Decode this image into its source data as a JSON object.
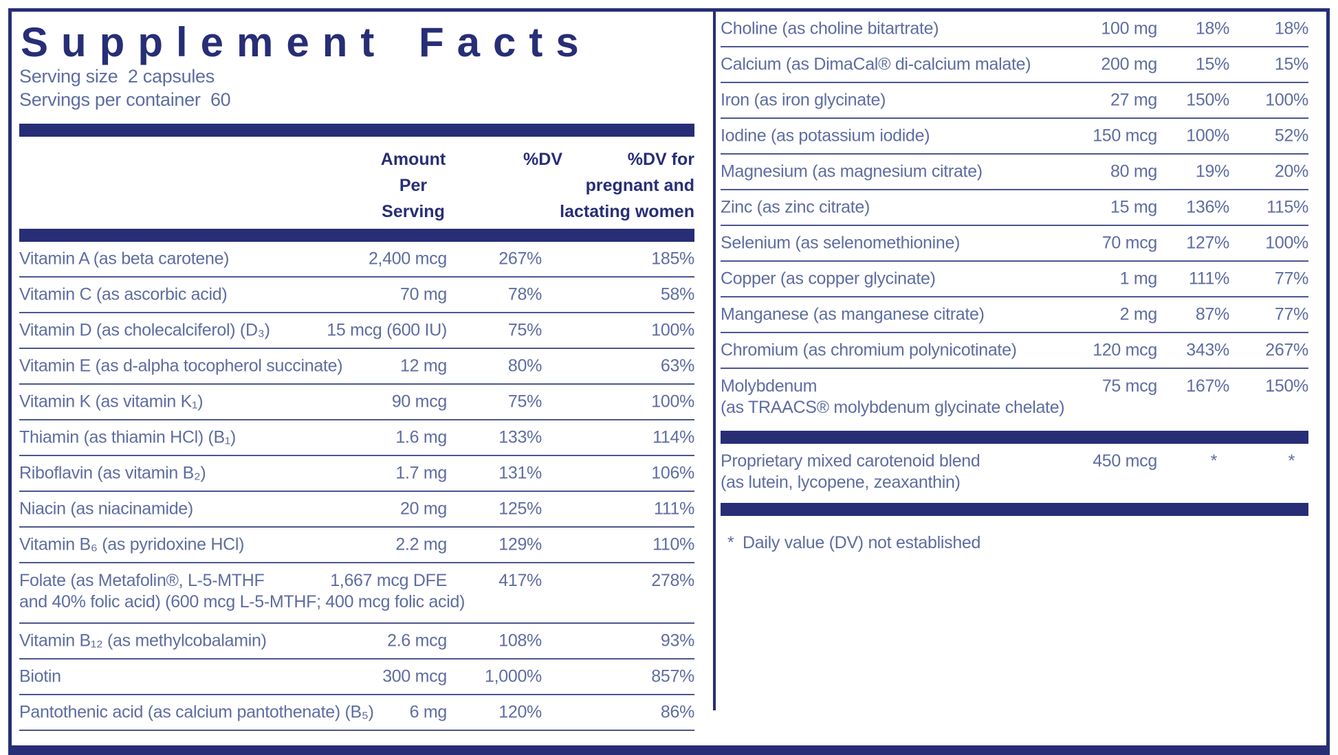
{
  "header": {
    "title": "Supplement Facts",
    "serving_size": "Serving size  2 capsules",
    "servings_per_container": "Servings per container  60"
  },
  "table_headers": {
    "amount_lines": [
      "Amount",
      "Per",
      "Serving"
    ],
    "dv": "%DV",
    "pregnant_lines": [
      "%DV for",
      "pregnant and",
      "lactating women"
    ]
  },
  "left_rows": [
    {
      "name": "Vitamin A (as beta carotene)",
      "amount": "2,400 mcg",
      "dv": "267%",
      "pdv": "185%"
    },
    {
      "name": "Vitamin C (as ascorbic acid)",
      "amount": "70 mg",
      "dv": "78%",
      "pdv": "58%"
    },
    {
      "name": "Vitamin D (as cholecalciferol) (D₃)",
      "amount": "15 mcg (600 IU)",
      "dv": "75%",
      "pdv": "100%"
    },
    {
      "name": "Vitamin E (as d-alpha tocopherol succinate)",
      "amount": "12 mg",
      "dv": "80%",
      "pdv": "63%"
    },
    {
      "name": "Vitamin K (as vitamin K₁)",
      "amount": "90 mcg",
      "dv": "75%",
      "pdv": "100%"
    },
    {
      "name": "Thiamin (as thiamin HCl) (B₁)",
      "amount": "1.6 mg",
      "dv": "133%",
      "pdv": "114%"
    },
    {
      "name": "Riboflavin (as vitamin B₂)",
      "amount": "1.7 mg",
      "dv": "131%",
      "pdv": "106%"
    },
    {
      "name": "Niacin (as niacinamide)",
      "amount": "20 mg",
      "dv": "125%",
      "pdv": "111%"
    },
    {
      "name": "Vitamin B₆ (as pyridoxine HCl)",
      "amount": "2.2 mg",
      "dv": "129%",
      "pdv": "110%"
    },
    {
      "name": "Folate (as Metafolin®, L-5-MTHF",
      "name2": "and 40% folic acid) (600 mcg L-5-MTHF; 400 mcg folic acid)",
      "amount": "1,667 mcg DFE",
      "dv": "417%",
      "pdv": "278%"
    },
    {
      "name": "Vitamin B₁₂ (as methylcobalamin)",
      "amount": "2.6 mcg",
      "dv": "108%",
      "pdv": "93%"
    },
    {
      "name": "Biotin",
      "amount": "300 mcg",
      "dv": "1,000%",
      "pdv": "857%"
    },
    {
      "name": "Pantothenic acid (as calcium pantothenate) (B₅)",
      "amount": "6 mg",
      "dv": "120%",
      "pdv": "86%"
    }
  ],
  "right_rows": [
    {
      "name": "Choline (as choline bitartrate)",
      "amount": "100 mg",
      "dv": "18%",
      "pdv": "18%"
    },
    {
      "name": "Calcium (as DimaCal® di-calcium malate)",
      "amount": "200 mg",
      "dv": "15%",
      "pdv": "15%"
    },
    {
      "name": "Iron (as iron glycinate)",
      "amount": "27 mg",
      "dv": "150%",
      "pdv": "100%"
    },
    {
      "name": "Iodine (as potassium iodide)",
      "amount": "150 mcg",
      "dv": "100%",
      "pdv": "52%"
    },
    {
      "name": "Magnesium (as magnesium citrate)",
      "amount": "80 mg",
      "dv": "19%",
      "pdv": "20%"
    },
    {
      "name": "Zinc (as zinc citrate)",
      "amount": "15 mg",
      "dv": "136%",
      "pdv": "115%"
    },
    {
      "name": "Selenium (as selenomethionine)",
      "amount": "70 mcg",
      "dv": "127%",
      "pdv": "100%"
    },
    {
      "name": "Copper (as copper glycinate)",
      "amount": "1 mg",
      "dv": "111%",
      "pdv": "77%"
    },
    {
      "name": "Manganese (as manganese citrate)",
      "amount": "2 mg",
      "dv": "87%",
      "pdv": "77%"
    },
    {
      "name": "Chromium (as chromium polynicotinate)",
      "amount": "120 mcg",
      "dv": "343%",
      "pdv": "267%"
    },
    {
      "name": "Molybdenum",
      "name2": "(as TRAACS® molybdenum glycinate chelate)",
      "amount": "75 mcg",
      "dv": "167%",
      "pdv": "150%"
    }
  ],
  "blend": {
    "name": "Proprietary mixed carotenoid blend",
    "name2": "(as lutein, lycopene, zeaxanthin)",
    "amount": "450 mcg",
    "dv": "*",
    "pdv": "*"
  },
  "footnote": {
    "marker": "*",
    "text": "Daily value (DV) not established"
  },
  "colors": {
    "navy": "#272e76",
    "body_text": "#5e6da0",
    "rule": "#4b568e"
  }
}
